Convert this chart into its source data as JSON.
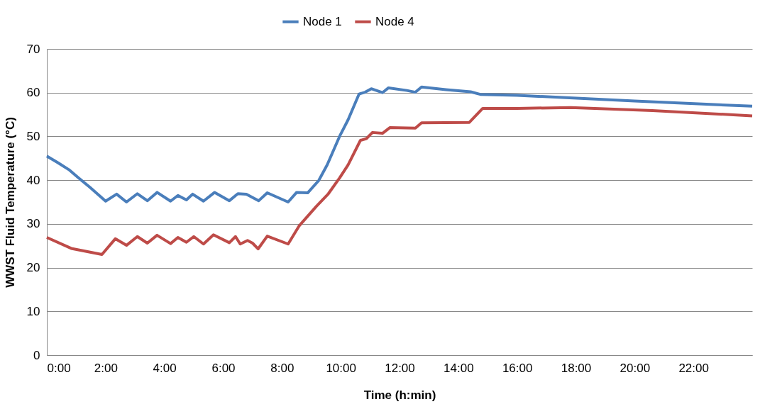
{
  "chart_data": {
    "type": "line",
    "xlabel": "Time (h:min)",
    "ylabel": "WWST Fluid Temperature (°C)",
    "xlim": [
      0,
      24
    ],
    "xticks": [
      {
        "value": 0,
        "label": "0:00"
      },
      {
        "value": 2,
        "label": "2:00"
      },
      {
        "value": 4,
        "label": "4:00"
      },
      {
        "value": 6,
        "label": "6:00"
      },
      {
        "value": 8,
        "label": "8:00"
      },
      {
        "value": 10,
        "label": "10:00"
      },
      {
        "value": 12,
        "label": "12:00"
      },
      {
        "value": 14,
        "label": "14:00"
      },
      {
        "value": 16,
        "label": "16:00"
      },
      {
        "value": 18,
        "label": "18:00"
      },
      {
        "value": 20,
        "label": "20:00"
      },
      {
        "value": 22,
        "label": "22:00"
      }
    ],
    "ylim": [
      0,
      70
    ],
    "yticks": [
      0,
      10,
      20,
      30,
      40,
      50,
      60,
      70
    ],
    "grid": "y",
    "legend": "top",
    "marker": "none",
    "line_style": "solid",
    "series": [
      {
        "name": "Node 1",
        "color": "#4a7ebb",
        "x": [
          0,
          0.375,
          0.75,
          1.08,
          1.46,
          2.0,
          2.375,
          2.71,
          3.08,
          3.42,
          3.75,
          4.21,
          4.46,
          4.75,
          4.96,
          5.33,
          5.71,
          6.21,
          6.5,
          6.79,
          7.21,
          7.5,
          8.21,
          8.5,
          8.875,
          9.25,
          9.54,
          9.96,
          10.25,
          10.625,
          10.83,
          11.04,
          11.42,
          11.625,
          12.25,
          12.54,
          12.75,
          13.58,
          14.42,
          14.75,
          16.0,
          20.0,
          24.0
        ],
        "values": [
          45.5,
          44.0,
          42.4,
          40.5,
          38.4,
          35.2,
          36.8,
          35.0,
          36.9,
          35.3,
          37.2,
          35.2,
          36.5,
          35.5,
          36.8,
          35.2,
          37.2,
          35.3,
          36.9,
          36.8,
          35.3,
          37.1,
          35.0,
          37.2,
          37.1,
          39.9,
          43.5,
          50.0,
          53.8,
          59.7,
          60.1,
          60.9,
          60.0,
          61.1,
          60.5,
          60.1,
          61.3,
          60.7,
          60.2,
          59.6,
          59.4,
          58.1,
          56.9
        ]
      },
      {
        "name": "Node 4",
        "color": "#be4b48",
        "x": [
          0,
          0.83,
          1.875,
          2.33,
          2.71,
          3.08,
          3.42,
          3.75,
          4.21,
          4.46,
          4.75,
          5.0,
          5.33,
          5.67,
          6.21,
          6.42,
          6.58,
          6.83,
          7.0,
          7.19,
          7.5,
          8.21,
          8.58,
          9.17,
          9.58,
          9.96,
          10.25,
          10.67,
          10.875,
          11.08,
          11.42,
          11.67,
          12.54,
          12.75,
          14.375,
          14.83,
          16.0,
          17.83,
          20.6,
          24.0
        ],
        "values": [
          26.9,
          24.4,
          23.0,
          26.6,
          25.1,
          27.1,
          25.6,
          27.4,
          25.5,
          26.9,
          25.8,
          27.1,
          25.4,
          27.5,
          25.7,
          27.1,
          25.4,
          26.2,
          25.6,
          24.3,
          27.2,
          25.4,
          29.5,
          34.0,
          36.9,
          40.5,
          43.5,
          49.1,
          49.5,
          50.9,
          50.7,
          52.0,
          51.9,
          53.1,
          53.2,
          56.4,
          56.4,
          56.6,
          55.9,
          54.7
        ]
      }
    ]
  }
}
